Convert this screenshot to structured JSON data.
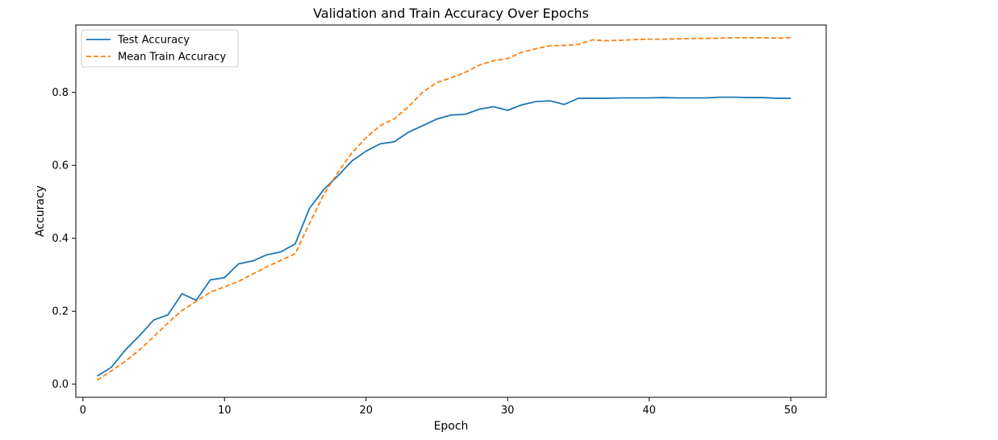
{
  "chart_data": {
    "type": "line",
    "title": "Validation and Train Accuracy Over Epochs",
    "xlabel": "Epoch",
    "ylabel": "Accuracy",
    "xlim": [
      -0.5,
      52.5
    ],
    "ylim": [
      -0.036,
      0.985
    ],
    "xticks": [
      0,
      10,
      20,
      30,
      40,
      50
    ],
    "xtick_labels": [
      "0",
      "10",
      "20",
      "30",
      "40",
      "50"
    ],
    "yticks": [
      0.0,
      0.2,
      0.4,
      0.6,
      0.8
    ],
    "ytick_labels": [
      "0.0",
      "0.2",
      "0.4",
      "0.6",
      "0.8"
    ],
    "grid": false,
    "legend_position": "top-left",
    "x": [
      1,
      2,
      3,
      4,
      5,
      6,
      7,
      8,
      9,
      10,
      11,
      12,
      13,
      14,
      15,
      16,
      17,
      18,
      19,
      20,
      21,
      22,
      23,
      24,
      25,
      26,
      27,
      28,
      29,
      30,
      31,
      32,
      33,
      34,
      35,
      36,
      37,
      38,
      39,
      40,
      41,
      42,
      43,
      44,
      45,
      46,
      47,
      48,
      49,
      50
    ],
    "series": [
      {
        "name": "Test Accuracy",
        "color": "#1f77b4",
        "dash": "solid",
        "values": [
          0.022,
          0.046,
          0.094,
          0.133,
          0.176,
          0.19,
          0.248,
          0.23,
          0.286,
          0.292,
          0.33,
          0.338,
          0.355,
          0.363,
          0.385,
          0.482,
          0.533,
          0.571,
          0.612,
          0.639,
          0.659,
          0.665,
          0.691,
          0.709,
          0.727,
          0.738,
          0.74,
          0.754,
          0.761,
          0.751,
          0.766,
          0.775,
          0.777,
          0.767,
          0.784,
          0.784,
          0.784,
          0.785,
          0.785,
          0.785,
          0.786,
          0.785,
          0.785,
          0.785,
          0.787,
          0.787,
          0.786,
          0.786,
          0.784,
          0.784
        ]
      },
      {
        "name": "Mean Train Accuracy",
        "color": "#ff7f0e",
        "dash": "dashed",
        "values": [
          0.011,
          0.036,
          0.063,
          0.094,
          0.13,
          0.168,
          0.202,
          0.227,
          0.252,
          0.267,
          0.282,
          0.302,
          0.322,
          0.34,
          0.358,
          0.441,
          0.519,
          0.58,
          0.634,
          0.676,
          0.709,
          0.728,
          0.761,
          0.801,
          0.827,
          0.84,
          0.855,
          0.875,
          0.887,
          0.893,
          0.91,
          0.92,
          0.928,
          0.929,
          0.932,
          0.944,
          0.942,
          0.943,
          0.945,
          0.946,
          0.946,
          0.947,
          0.948,
          0.948,
          0.949,
          0.95,
          0.95,
          0.95,
          0.949,
          0.95
        ]
      }
    ]
  }
}
